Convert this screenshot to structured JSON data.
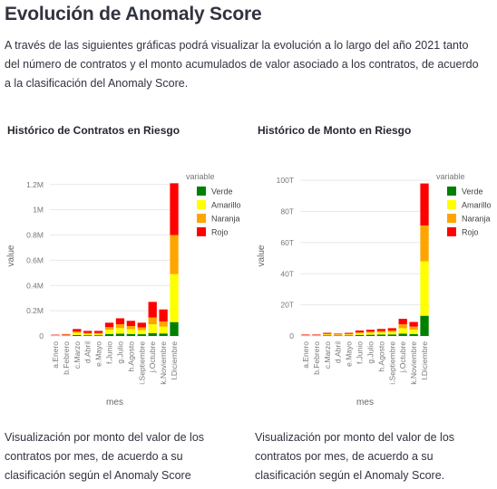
{
  "page": {
    "title": "Evolución de Anomaly Score",
    "intro": "A través de las siguientes gráficas podrá visualizar la evolución a lo largo del año 2021 tanto del número de contratos y el monto acumulados de valor asociado a los contratos, de acuerdo a la clasificación del Anomaly Score."
  },
  "charts": [
    {
      "title": "Histórico de Contratos en Riesgo",
      "caption": "Visualización por monto del valor de los contratos por mes, de acuerdo a su clasificación según el Anomaly Score"
    },
    {
      "title": "Histórico de Monto en Riesgo",
      "caption": "Visualización por monto del valor de los contratos por mes, de acuerdo a su clasificación según el Anomaly Score."
    }
  ],
  "colors": {
    "Verde": "#008000",
    "Amarillo": "#ffff00",
    "Naranja": "#ffa500",
    "Rojo": "#ff0000"
  },
  "chart_data": [
    {
      "type": "bar",
      "stacked": true,
      "title": "Histórico de Contratos en Riesgo",
      "xlabel": "mes",
      "ylabel": "value",
      "legend_title": "variable",
      "legend_position": "top-right",
      "ylim": [
        0,
        1270000
      ],
      "yticks": [
        0,
        200000,
        400000,
        600000,
        800000,
        1000000,
        1200000
      ],
      "ytick_labels": [
        "0",
        "0.2M",
        "0.4M",
        "0.6M",
        "0.8M",
        "1M",
        "1.2M"
      ],
      "grid": true,
      "categories": [
        "a.Enero",
        "b.Febrero",
        "c.Marzo",
        "d.Abril",
        "e.Mayo",
        "f.Junio",
        "g.Julio",
        "h.Agosto",
        "i.Septiembre",
        "j.Octubre",
        "k.Noviembre",
        "l.Diciembre"
      ],
      "series": [
        {
          "name": "Verde",
          "values": [
            2000,
            3000,
            8000,
            6000,
            6000,
            15000,
            18000,
            16000,
            14000,
            22000,
            20000,
            110000
          ]
        },
        {
          "name": "Amarillo",
          "values": [
            3000,
            5000,
            17000,
            10000,
            10000,
            35000,
            45000,
            38000,
            32000,
            70000,
            55000,
            380000
          ]
        },
        {
          "name": "Naranja",
          "values": [
            2000,
            3000,
            10000,
            8000,
            8000,
            20000,
            30000,
            25000,
            22000,
            55000,
            40000,
            310000
          ]
        },
        {
          "name": "Rojo",
          "values": [
            3000,
            4000,
            20000,
            16000,
            16000,
            35000,
            47000,
            41000,
            37000,
            123000,
            95000,
            410000
          ]
        }
      ]
    },
    {
      "type": "bar",
      "stacked": true,
      "title": "Histórico de Monto en Riesgo",
      "xlabel": "mes",
      "ylabel": "value",
      "legend_title": "variable",
      "legend_position": "top-right",
      "ylim": [
        0,
        103000000000000
      ],
      "yticks": [
        0,
        20000000000000,
        40000000000000,
        60000000000000,
        80000000000000,
        100000000000000
      ],
      "ytick_labels": [
        "0",
        "20T",
        "40T",
        "60T",
        "80T",
        "100T"
      ],
      "grid": true,
      "categories": [
        "a.Enero",
        "b.Febrero",
        "c.Marzo",
        "d.Abril",
        "e.Mayo",
        "f.Junio",
        "g.Julio",
        "h.Agosto",
        "i.Septiembre",
        "j.Octubre",
        "k.Noviembre",
        "l.Diciembre"
      ],
      "series": [
        {
          "name": "Verde",
          "values": [
            200000000000,
            200000000000,
            400000000000,
            300000000000,
            400000000000,
            700000000000,
            800000000000,
            900000000000,
            1000000000000,
            1500000000000,
            1200000000000,
            13000000000000
          ]
        },
        {
          "name": "Amarillo",
          "values": [
            300000000000,
            300000000000,
            600000000000,
            500000000000,
            600000000000,
            1000000000000,
            1200000000000,
            1400000000000,
            1500000000000,
            3500000000000,
            2800000000000,
            35000000000000
          ]
        },
        {
          "name": "Naranja",
          "values": [
            200000000000,
            200000000000,
            400000000000,
            300000000000,
            400000000000,
            700000000000,
            800000000000,
            900000000000,
            1000000000000,
            2500000000000,
            2000000000000,
            23000000000000
          ]
        },
        {
          "name": "Rojo",
          "values": [
            300000000000,
            300000000000,
            600000000000,
            400000000000,
            600000000000,
            1100000000000,
            1200000000000,
            1300000000000,
            1500000000000,
            3500000000000,
            3000000000000,
            27000000000000
          ]
        }
      ]
    }
  ]
}
